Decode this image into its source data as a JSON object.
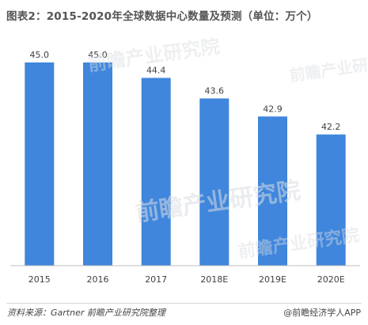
{
  "title": "图表2：2015-2020年全球数据中心数量及预测（单位：万个）",
  "chart_data": {
    "type": "bar",
    "categories": [
      "2015",
      "2016",
      "2017",
      "2018E",
      "2019E",
      "2020E"
    ],
    "values": [
      45.0,
      45.0,
      44.4,
      43.6,
      42.9,
      42.2
    ],
    "data_labels": [
      "45.0",
      "45.0",
      "44.4",
      "43.6",
      "42.9",
      "42.2"
    ],
    "title": "图表2：2015-2020年全球数据中心数量及预测（单位：万个）",
    "xlabel": "",
    "ylabel": "",
    "ylim": [
      37.1,
      45.0
    ],
    "grid": false,
    "legend": "none",
    "bar_color": "#3f86dc"
  },
  "footer": {
    "source": "资料来源：Gartner 前瞻产业研究院整理",
    "brand": "@前瞻经济学人APP"
  },
  "watermark": {
    "text": "前瞻产业研究院"
  }
}
